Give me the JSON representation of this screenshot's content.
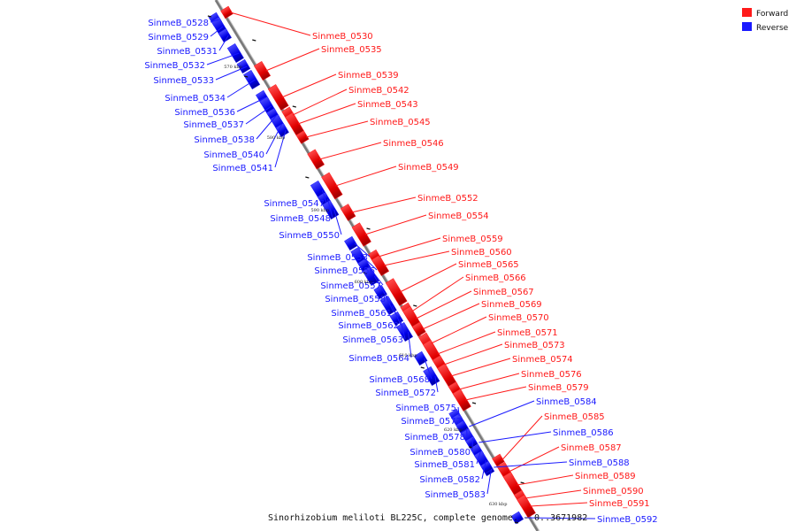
{
  "caption": "Sinorhizobium meliloti BL225C, complete genome. - 0..3671982",
  "legend": [
    {
      "label": "Forward",
      "color": "#ff1a1a"
    },
    {
      "label": "Reverse",
      "color": "#1a1aff"
    }
  ],
  "colors": {
    "forward": "#ff1a1a",
    "reverse": "#1a1aff",
    "backbone": "#7a7a7a"
  },
  "ticks": [
    "570 kbp",
    "580 kbp",
    "590 kbp",
    "600 kbp",
    "610 kbp",
    "620 kbp",
    "630 kbp"
  ],
  "reverse_genes": [
    "SinmeB_0528",
    "SinmeB_0529",
    "SinmeB_0531",
    "SinmeB_0532",
    "SinmeB_0533",
    "SinmeB_0534",
    "SinmeB_0536",
    "SinmeB_0537",
    "SinmeB_0538",
    "SinmeB_0540",
    "SinmeB_0541",
    "SinmeB_0547",
    "SinmeB_0548",
    "SinmeB_0550",
    "SinmeB_0553",
    "SinmeB_0556",
    "SinmeB_0557",
    "SinmeB_0558",
    "SinmeB_0561",
    "SinmeB_0562",
    "SinmeB_0563",
    "SinmeB_0564",
    "SinmeB_0568",
    "SinmeB_0572",
    "SinmeB_0575",
    "SinmeB_0577",
    "SinmeB_0578",
    "SinmeB_0580",
    "SinmeB_0581",
    "SinmeB_0582",
    "SinmeB_0583"
  ],
  "forward_genes": [
    "SinmeB_0530",
    "SinmeB_0535",
    "SinmeB_0539",
    "SinmeB_0542",
    "SinmeB_0543",
    "SinmeB_0545",
    "SinmeB_0546",
    "SinmeB_0549",
    "SinmeB_0552",
    "SinmeB_0554",
    "SinmeB_0559",
    "SinmeB_0560",
    "SinmeB_0565",
    "SinmeB_0566",
    "SinmeB_0567",
    "SinmeB_0569",
    "SinmeB_0570",
    "SinmeB_0571",
    "SinmeB_0573",
    "SinmeB_0574",
    "SinmeB_0576",
    "SinmeB_0579",
    "SinmeB_0585",
    "SinmeB_0587",
    "SinmeB_0589",
    "SinmeB_0590",
    "SinmeB_0591"
  ],
  "right_reverse_genes": [
    "SinmeB_0584",
    "SinmeB_0586",
    "SinmeB_0588",
    "SinmeB_0592"
  ]
}
